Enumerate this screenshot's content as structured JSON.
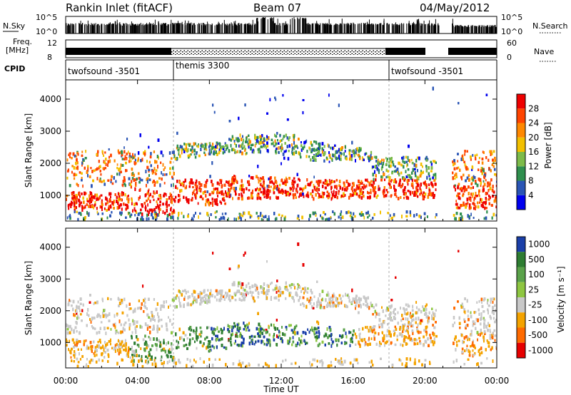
{
  "header": {
    "station": "Rankin Inlet (fitACF)",
    "beam": "Beam 07",
    "date": "04/May/2012"
  },
  "top_panels": {
    "nsky_label": "N.Sky",
    "nsky_ticks": [
      "10^5",
      "10^0"
    ],
    "nsearch_label": "N.Search",
    "nsearch_ticks": [
      "10^5",
      "10^0"
    ],
    "freq_label": "Freq.",
    "freq_unit": "[MHz]",
    "freq_ticks": [
      "12",
      "8"
    ],
    "nave_label": "Nave",
    "nave_ticks": [
      "60",
      "0"
    ],
    "cpid_label": "CPID"
  },
  "cpid_segments": [
    {
      "start": 0,
      "end": 6,
      "name": "twofsound -3501"
    },
    {
      "start": 6,
      "end": 18,
      "name": "themis 3300"
    },
    {
      "start": 18,
      "end": 24,
      "name": "twofsound -3501"
    }
  ],
  "chart_data": [
    {
      "type": "heatmap",
      "quantity": "Power",
      "ylabel": "Slant Range [km]",
      "xlabel": "",
      "ylim": [
        200,
        4600
      ],
      "yticks": [
        "1000",
        "2000",
        "3000",
        "4000"
      ],
      "colorbar_label": "Power [dB]",
      "colorbar_ticks": [
        "4",
        "8",
        "12",
        "16",
        "20",
        "24",
        "28"
      ],
      "colors": [
        "#0000ee",
        "#2a55b5",
        "#2f8f4e",
        "#7dbb4a",
        "#f2c000",
        "#ff8800",
        "#ff4400",
        "#ee0000"
      ]
    },
    {
      "type": "heatmap",
      "quantity": "Velocity",
      "ylabel": "Slant Range [km]",
      "xlabel": "Time UT",
      "ylim": [
        200,
        4600
      ],
      "yticks": [
        "1000",
        "2000",
        "3000",
        "4000"
      ],
      "colorbar_label": "Velocity [m s⁻¹]",
      "colorbar_ticks": [
        "1000",
        "500",
        "100",
        "25",
        "-25",
        "-100",
        "-500",
        "-1000"
      ],
      "colors": [
        "#1a3fa8",
        "#2e7d32",
        "#5aa24a",
        "#8ec641",
        "#c8c8c8",
        "#f4a300",
        "#ff6a00",
        "#e60000"
      ]
    }
  ],
  "time_axis": {
    "ticks": [
      "00:00",
      "04:00",
      "08:00",
      "12:00",
      "16:00",
      "20:00",
      "00:00"
    ]
  }
}
